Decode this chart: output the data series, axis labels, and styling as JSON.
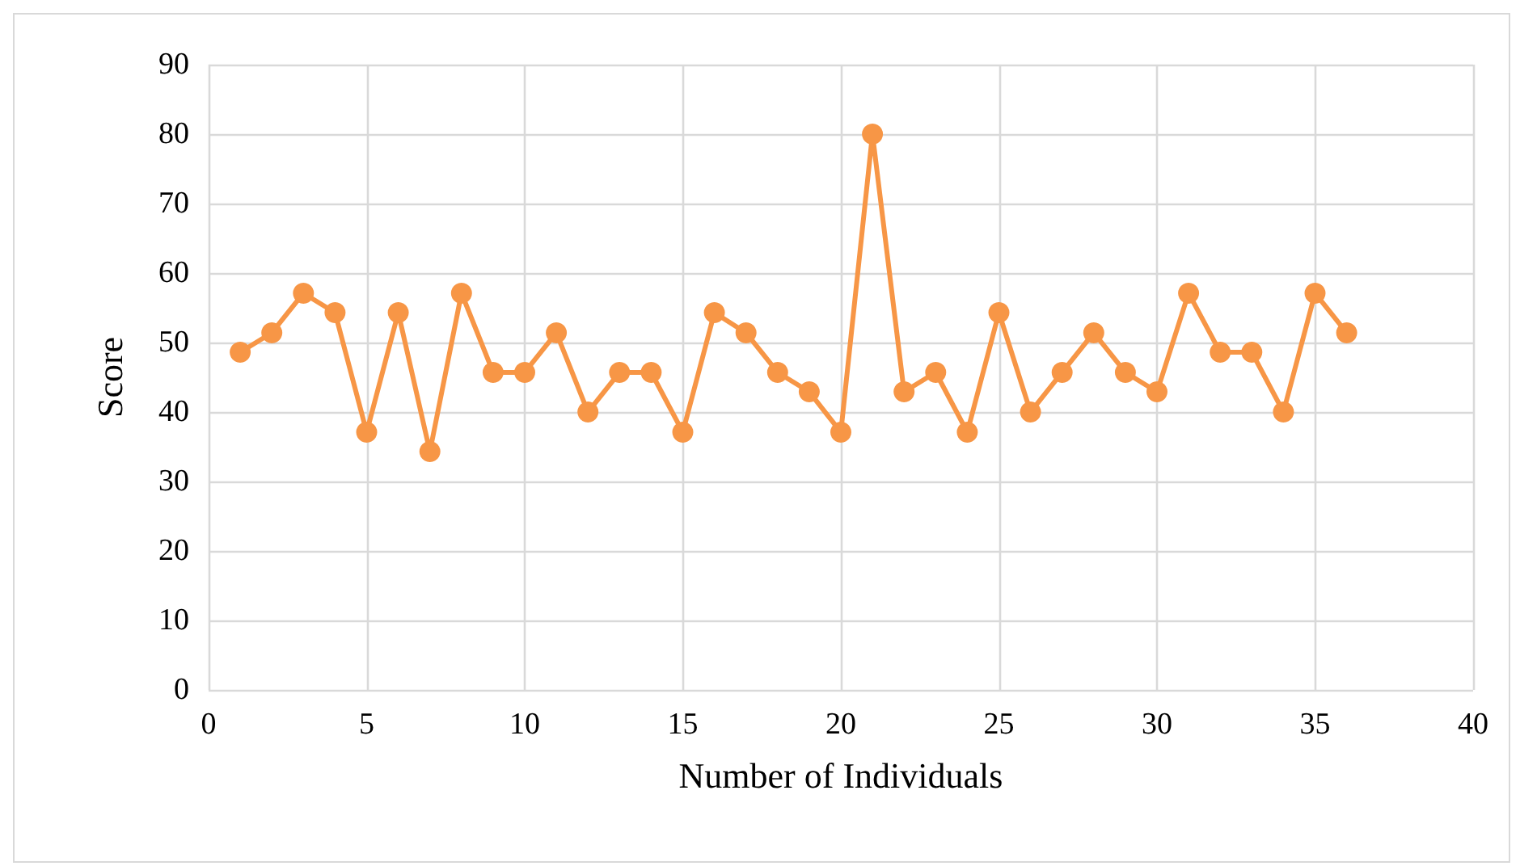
{
  "chart_data": {
    "type": "line",
    "xlabel": "Number of Individuals",
    "ylabel": "Score",
    "x": [
      1,
      2,
      3,
      4,
      5,
      6,
      7,
      8,
      9,
      10,
      11,
      12,
      13,
      14,
      15,
      16,
      17,
      18,
      19,
      20,
      21,
      22,
      23,
      24,
      25,
      26,
      27,
      28,
      29,
      30,
      31,
      32,
      33,
      34,
      35,
      36
    ],
    "series": [
      {
        "color": "#f79646",
        "values": [
          48.6,
          51.4,
          57.1,
          54.3,
          37.1,
          54.3,
          34.3,
          57.1,
          45.7,
          45.7,
          51.4,
          40,
          45.7,
          45.7,
          37.1,
          54.3,
          51.4,
          45.7,
          42.9,
          37.1,
          80,
          42.9,
          45.7,
          37.1,
          54.3,
          40,
          45.7,
          51.4,
          45.7,
          42.9,
          57.1,
          48.6,
          48.6,
          40,
          57.1,
          51.4
        ]
      }
    ],
    "xlim": [
      0,
      40
    ],
    "xticks": [
      0,
      5,
      10,
      15,
      20,
      25,
      30,
      35,
      40
    ],
    "ylim": [
      0,
      90
    ],
    "yticks": [
      0,
      10,
      20,
      30,
      40,
      50,
      60,
      70,
      80,
      90
    ],
    "grid": true,
    "marker": "circle",
    "line_style": "solid"
  }
}
